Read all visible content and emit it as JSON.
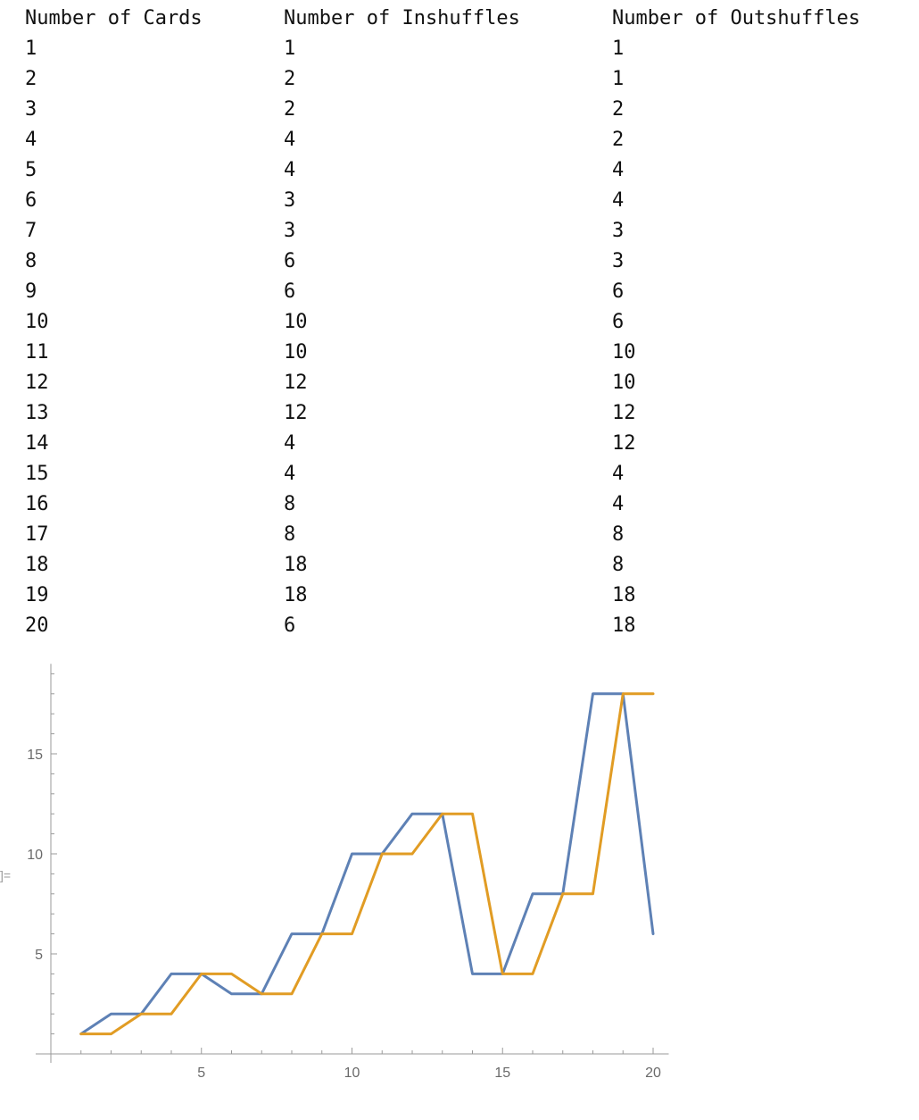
{
  "table": {
    "headers": [
      "Number of Cards",
      "Number of Inshuffles",
      "Number of Outshuffles"
    ],
    "rows": [
      [
        "1",
        "1",
        "1"
      ],
      [
        "2",
        "2",
        "1"
      ],
      [
        "3",
        "2",
        "2"
      ],
      [
        "4",
        "4",
        "2"
      ],
      [
        "5",
        "4",
        "4"
      ],
      [
        "6",
        "3",
        "4"
      ],
      [
        "7",
        "3",
        "3"
      ],
      [
        "8",
        "6",
        "3"
      ],
      [
        "9",
        "6",
        "6"
      ],
      [
        "10",
        "10",
        "6"
      ],
      [
        "11",
        "10",
        "10"
      ],
      [
        "12",
        "12",
        "10"
      ],
      [
        "13",
        "12",
        "12"
      ],
      [
        "14",
        "4",
        "12"
      ],
      [
        "15",
        "4",
        "4"
      ],
      [
        "16",
        "8",
        "4"
      ],
      [
        "17",
        "8",
        "8"
      ],
      [
        "18",
        "18",
        "8"
      ],
      [
        "19",
        "18",
        "18"
      ],
      [
        "20",
        "6",
        "18"
      ]
    ]
  },
  "output_label": "]=",
  "chart_data": {
    "type": "line",
    "x": [
      1,
      2,
      3,
      4,
      5,
      6,
      7,
      8,
      9,
      10,
      11,
      12,
      13,
      14,
      15,
      16,
      17,
      18,
      19,
      20
    ],
    "series": [
      {
        "values": [
          1,
          2,
          2,
          4,
          4,
          3,
          3,
          6,
          6,
          10,
          10,
          12,
          12,
          4,
          4,
          8,
          8,
          18,
          18,
          6
        ],
        "color": "#5E81B5"
      },
      {
        "values": [
          1,
          1,
          2,
          2,
          4,
          4,
          3,
          3,
          6,
          6,
          10,
          10,
          12,
          12,
          4,
          4,
          8,
          8,
          18,
          18
        ],
        "color": "#E19C24"
      }
    ],
    "xticks": [
      "5",
      "10",
      "15",
      "20"
    ],
    "yticks": [
      "5",
      "10",
      "15"
    ],
    "xlim": [
      0,
      20.4
    ],
    "ylim": [
      0,
      19.5
    ],
    "title": "",
    "xlabel": "",
    "ylabel": "",
    "grid": false,
    "legend": "none"
  }
}
